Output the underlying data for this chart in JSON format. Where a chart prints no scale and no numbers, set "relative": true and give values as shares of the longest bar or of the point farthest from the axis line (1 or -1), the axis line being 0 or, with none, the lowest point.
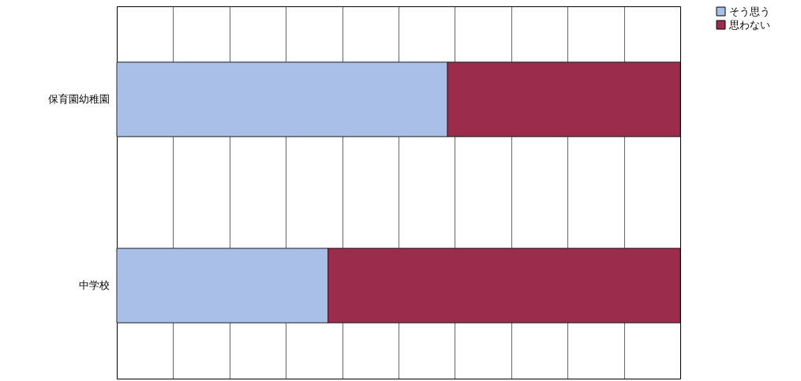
{
  "chart_data": {
    "type": "bar",
    "orientation": "horizontal",
    "stacked": true,
    "relative": true,
    "categories": [
      "保育園幼稚園",
      "中学校"
    ],
    "series": [
      {
        "name": "そう思う",
        "color": "#a9bfe8",
        "values": [
          0.587,
          0.375
        ]
      },
      {
        "name": "思わない",
        "color": "#9b2c4c",
        "values": [
          0.413,
          0.625
        ]
      }
    ],
    "grid": "x",
    "legend": "right"
  }
}
